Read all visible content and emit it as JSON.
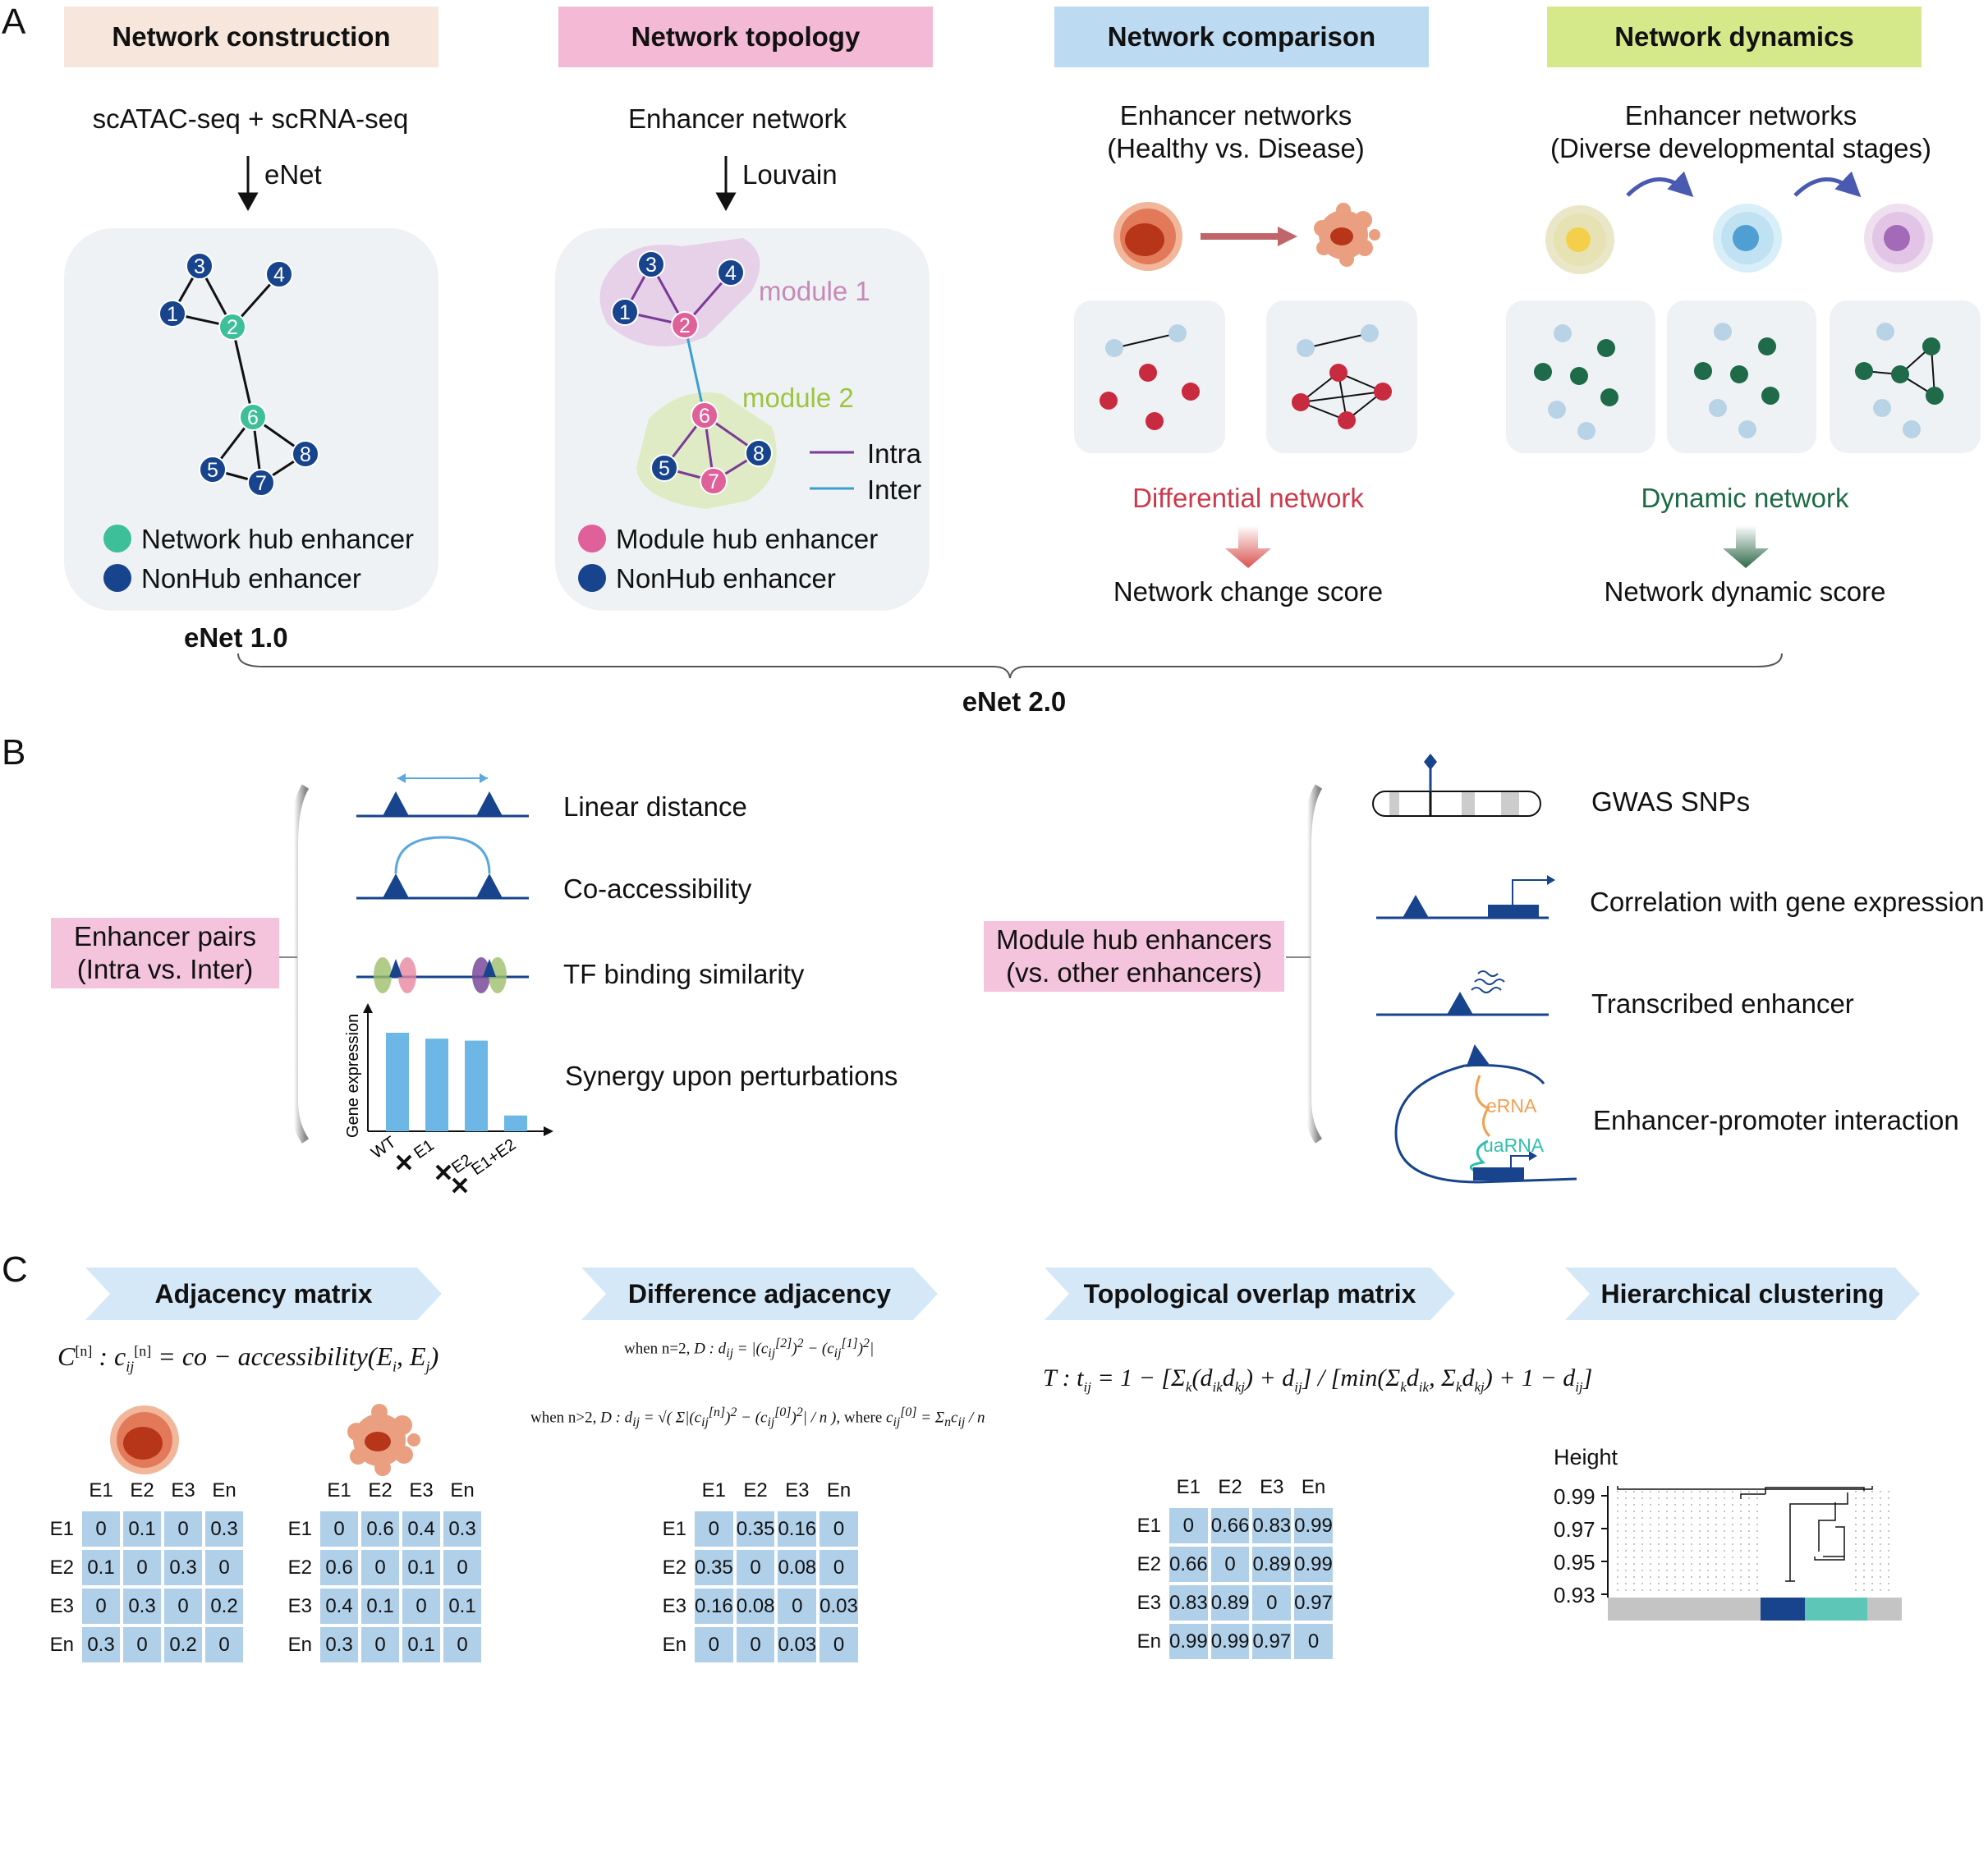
{
  "panel_labels": {
    "a": "A",
    "b": "B",
    "c": "C"
  },
  "section_a": {
    "headers": [
      {
        "label": "Network construction",
        "color": "#f6e6dc"
      },
      {
        "label": "Network topology",
        "color": "#f4b9d4"
      },
      {
        "label": "Network comparison",
        "color": "#bcdaf1"
      },
      {
        "label": "Network dynamics",
        "color": "#d5e88a"
      }
    ],
    "construction": {
      "input": "scATAC-seq + scRNA-seq",
      "method": "eNet",
      "legend_hub": "Network hub enhancer",
      "legend_nonhub": "NonHub enhancer",
      "version": "eNet 1.0"
    },
    "topology": {
      "input": "Enhancer network",
      "method": "Louvain",
      "module1": "module 1",
      "module2": "module 2",
      "intra": "Intra",
      "inter": "Inter",
      "legend_hub": "Module hub enhancer",
      "legend_nonhub": "NonHub enhancer"
    },
    "comparison": {
      "title1": "Enhancer networks",
      "title2": "(Healthy vs. Disease)",
      "result": "Differential network",
      "score": "Network change score"
    },
    "dynamics": {
      "title1": "Enhancer networks",
      "title2": "(Diverse developmental stages)",
      "result": "Dynamic network",
      "score": "Network dynamic score"
    },
    "version2": "eNet 2.0",
    "node_labels": [
      "1",
      "2",
      "3",
      "4",
      "5",
      "6",
      "7",
      "8"
    ],
    "colors": {
      "hub_green": "#3dbf9a",
      "nonhub_blue": "#17448c",
      "module_pink": "#e0609a",
      "red_text": "#cc3a4c",
      "green_text": "#1d6b45",
      "intra": "#7a3a96",
      "inter": "#3a9fd0"
    }
  },
  "section_b": {
    "left_box": {
      "line1": "Enhancer pairs",
      "line2": "(Intra vs. Inter)"
    },
    "left_items": [
      "Linear distance",
      "Co-accessibility",
      "TF binding similarity",
      "Synergy upon perturbations"
    ],
    "bar_chart": {
      "ylabel": "Gene expression",
      "categories": [
        "WT",
        "E1",
        "E2",
        "E1+E2"
      ],
      "values": [
        1.0,
        0.94,
        0.92,
        0.16
      ]
    },
    "right_box": {
      "line1": "Module hub enhancers",
      "line2": "(vs. other enhancers)"
    },
    "right_items": [
      "GWAS SNPs",
      "Correlation with gene expression",
      "Transcribed enhancer",
      "Enhancer-promoter interaction"
    ],
    "erna": "eRNA",
    "uarna": "uaRNA"
  },
  "section_c": {
    "chevrons": [
      "Adjacency matrix",
      "Difference adjacency",
      "Topological overlap matrix",
      "Hierarchical clustering"
    ],
    "headers": [
      "E1",
      "E2",
      "E3",
      "En"
    ],
    "healthy": [
      [
        "0",
        "0.1",
        "0",
        "0.3"
      ],
      [
        "0.1",
        "0",
        "0.3",
        "0"
      ],
      [
        "0",
        "0.3",
        "0",
        "0.2"
      ],
      [
        "0.3",
        "0",
        "0.2",
        "0"
      ]
    ],
    "disease": [
      [
        "0",
        "0.6",
        "0.4",
        "0.3"
      ],
      [
        "0.6",
        "0",
        "0.1",
        "0"
      ],
      [
        "0.4",
        "0.1",
        "0",
        "0.1"
      ],
      [
        "0.3",
        "0",
        "0.1",
        "0"
      ]
    ],
    "difference": [
      [
        "0",
        "0.35",
        "0.16",
        "0"
      ],
      [
        "0.35",
        "0",
        "0.08",
        "0"
      ],
      [
        "0.16",
        "0.08",
        "0",
        "0.03"
      ],
      [
        "0",
        "0",
        "0.03",
        "0"
      ]
    ],
    "tom": [
      [
        "0",
        "0.66",
        "0.83",
        "0.99"
      ],
      [
        "0.66",
        "0",
        "0.89",
        "0.99"
      ],
      [
        "0.83",
        "0.89",
        "0",
        "0.97"
      ],
      [
        "0.99",
        "0.99",
        "0.97",
        "0"
      ]
    ],
    "dendrogram": {
      "ylabel": "Height",
      "ticks": [
        "0.99",
        "0.97",
        "0.95",
        "0.93"
      ]
    }
  }
}
